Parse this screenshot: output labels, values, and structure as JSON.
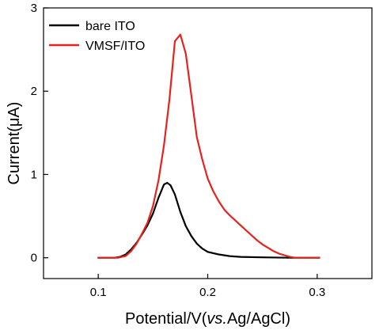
{
  "chart_data": {
    "type": "line",
    "xlabel_parts": [
      "Potential/V(",
      "vs.",
      "Ag/AgCl)"
    ],
    "ylabel": "Current(μA)",
    "xlim": [
      0.05,
      0.35
    ],
    "ylim": [
      -0.25,
      3.0
    ],
    "xticks": [
      0.1,
      0.2,
      0.3
    ],
    "xtick_labels": [
      "0.1",
      "0.2",
      "0.3"
    ],
    "yticks": [
      0,
      1,
      2,
      3
    ],
    "ytick_labels": [
      "0",
      "1",
      "2",
      "3"
    ],
    "grid": false,
    "legend_position": "top-left",
    "series": [
      {
        "name": "bare ITO",
        "color": "#000000",
        "points": [
          [
            0.1,
            0.0
          ],
          [
            0.115,
            0.0
          ],
          [
            0.12,
            0.01
          ],
          [
            0.125,
            0.04
          ],
          [
            0.13,
            0.1
          ],
          [
            0.135,
            0.18
          ],
          [
            0.14,
            0.28
          ],
          [
            0.145,
            0.39
          ],
          [
            0.15,
            0.53
          ],
          [
            0.155,
            0.72
          ],
          [
            0.16,
            0.88
          ],
          [
            0.163,
            0.9
          ],
          [
            0.166,
            0.87
          ],
          [
            0.17,
            0.76
          ],
          [
            0.175,
            0.55
          ],
          [
            0.18,
            0.38
          ],
          [
            0.185,
            0.26
          ],
          [
            0.19,
            0.17
          ],
          [
            0.195,
            0.11
          ],
          [
            0.2,
            0.07
          ],
          [
            0.21,
            0.04
          ],
          [
            0.22,
            0.02
          ],
          [
            0.23,
            0.01
          ],
          [
            0.25,
            0.005
          ],
          [
            0.275,
            0.0
          ],
          [
            0.302,
            0.0
          ]
        ]
      },
      {
        "name": "VMSF/ITO",
        "color": "#e8211c",
        "points": [
          [
            0.1,
            0.0
          ],
          [
            0.118,
            0.0
          ],
          [
            0.125,
            0.02
          ],
          [
            0.13,
            0.08
          ],
          [
            0.135,
            0.17
          ],
          [
            0.14,
            0.29
          ],
          [
            0.145,
            0.42
          ],
          [
            0.15,
            0.62
          ],
          [
            0.155,
            0.93
          ],
          [
            0.16,
            1.35
          ],
          [
            0.165,
            1.9
          ],
          [
            0.17,
            2.6
          ],
          [
            0.175,
            2.68
          ],
          [
            0.18,
            2.45
          ],
          [
            0.185,
            1.95
          ],
          [
            0.19,
            1.45
          ],
          [
            0.195,
            1.18
          ],
          [
            0.2,
            0.95
          ],
          [
            0.205,
            0.8
          ],
          [
            0.21,
            0.68
          ],
          [
            0.215,
            0.58
          ],
          [
            0.22,
            0.51
          ],
          [
            0.225,
            0.45
          ],
          [
            0.23,
            0.39
          ],
          [
            0.235,
            0.33
          ],
          [
            0.24,
            0.27
          ],
          [
            0.245,
            0.21
          ],
          [
            0.25,
            0.16
          ],
          [
            0.255,
            0.12
          ],
          [
            0.26,
            0.08
          ],
          [
            0.265,
            0.05
          ],
          [
            0.27,
            0.03
          ],
          [
            0.275,
            0.01
          ],
          [
            0.28,
            0.0
          ],
          [
            0.302,
            0.0
          ]
        ]
      }
    ]
  }
}
